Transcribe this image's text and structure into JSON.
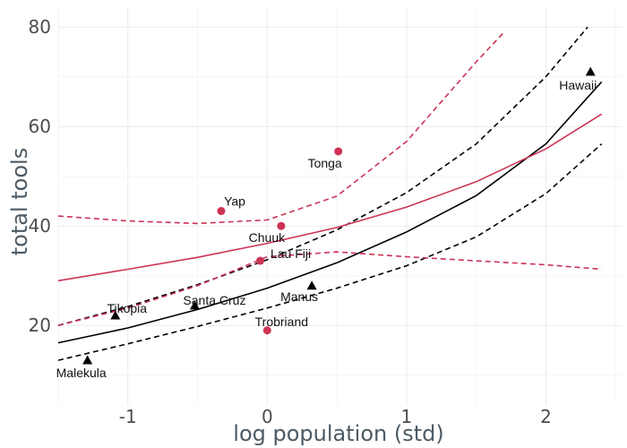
{
  "chart_data": {
    "type": "scatter",
    "xlabel": "log population (std)",
    "ylabel": "total tools",
    "xlim": [
      -1.5,
      2.55
    ],
    "ylim": [
      4,
      84
    ],
    "x_ticks": [
      -1,
      0,
      1,
      2
    ],
    "x_tick_labels": [
      "-1",
      "0",
      "1",
      "2"
    ],
    "y_ticks": [
      20,
      40,
      60,
      80
    ],
    "y_tick_labels": [
      "20",
      "40",
      "60",
      "80"
    ],
    "grid": true,
    "legend": "none",
    "colors": {
      "red": "#cc3355",
      "black": "#000000"
    },
    "points": [
      {
        "name": "Malekula",
        "x": -1.29,
        "y": 13,
        "group": "black",
        "shape": "triangle"
      },
      {
        "name": "Tikopia",
        "x": -1.09,
        "y": 22,
        "group": "black",
        "shape": "triangle"
      },
      {
        "name": "Santa Cruz",
        "x": -0.52,
        "y": 24,
        "group": "black",
        "shape": "triangle"
      },
      {
        "name": "Manus",
        "x": 0.32,
        "y": 28,
        "group": "black",
        "shape": "triangle"
      },
      {
        "name": "Hawaii",
        "x": 2.32,
        "y": 71,
        "group": "black",
        "shape": "triangle"
      },
      {
        "name": "Yap",
        "x": -0.33,
        "y": 43,
        "group": "red",
        "shape": "circle"
      },
      {
        "name": "Lau Fiji",
        "x": -0.05,
        "y": 33,
        "group": "red",
        "shape": "circle"
      },
      {
        "name": "Trobriand",
        "x": 0.0,
        "y": 19,
        "group": "red",
        "shape": "circle"
      },
      {
        "name": "Chuuk",
        "x": 0.1,
        "y": 40,
        "group": "red",
        "shape": "circle"
      },
      {
        "name": "Tonga",
        "x": 0.51,
        "y": 55,
        "group": "red",
        "shape": "circle"
      }
    ],
    "series": [
      {
        "group": "black",
        "style": "solid",
        "x": [
          -1.5,
          -1,
          -0.5,
          0,
          0.5,
          1,
          1.5,
          2,
          2.4
        ],
        "y": [
          16.5,
          19.5,
          23.2,
          27.5,
          32.6,
          38.8,
          46.1,
          56.5,
          69
        ]
      },
      {
        "group": "black",
        "style": "dashed",
        "x": [
          -1.5,
          -1,
          -0.5,
          0,
          0.5,
          1,
          1.5,
          2,
          2.3
        ],
        "y": [
          20,
          23.8,
          28.2,
          33.2,
          39.2,
          46.7,
          56.5,
          70,
          80
        ]
      },
      {
        "group": "black",
        "style": "dashed",
        "x": [
          -1.5,
          -1,
          -0.5,
          0,
          0.5,
          1,
          1.5,
          2,
          2.4
        ],
        "y": [
          13,
          16.3,
          19.8,
          23.5,
          27.5,
          32,
          37.8,
          46.5,
          56.5
        ]
      },
      {
        "group": "red",
        "style": "solid",
        "x": [
          -1.5,
          -1,
          -0.5,
          0,
          0.5,
          1,
          1.5,
          2,
          2.4
        ],
        "y": [
          29,
          31.3,
          33.7,
          36.5,
          39.7,
          43.8,
          48.9,
          55.5,
          62.5
        ]
      },
      {
        "group": "red",
        "style": "dashed",
        "x": [
          -1.5,
          -1,
          -0.5,
          0,
          0.5,
          1,
          1.5,
          1.7
        ],
        "y": [
          42,
          41,
          40.5,
          41.2,
          46,
          57,
          73,
          79
        ]
      },
      {
        "group": "red",
        "style": "dashed",
        "x": [
          -1.5,
          -1,
          -0.5,
          0,
          0.5,
          1,
          1.5,
          2,
          2.4
        ],
        "y": [
          20,
          23.5,
          28,
          33.8,
          34.8,
          33.8,
          33,
          32.2,
          31.3
        ]
      }
    ]
  }
}
